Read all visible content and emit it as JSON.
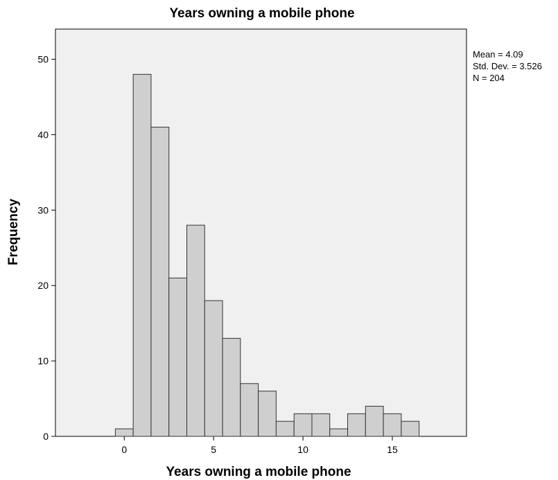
{
  "chart_data": {
    "type": "bar",
    "title": "Years owning a mobile phone",
    "xlabel": "Years owning a mobile phone",
    "ylabel": "Frequency",
    "bin_width": 1,
    "bins": [
      {
        "center": 0,
        "count": 1
      },
      {
        "center": 1,
        "count": 48
      },
      {
        "center": 2,
        "count": 41
      },
      {
        "center": 3,
        "count": 21
      },
      {
        "center": 4,
        "count": 28
      },
      {
        "center": 5,
        "count": 18
      },
      {
        "center": 6,
        "count": 13
      },
      {
        "center": 7,
        "count": 7
      },
      {
        "center": 8,
        "count": 6
      },
      {
        "center": 9,
        "count": 2
      },
      {
        "center": 10,
        "count": 3
      },
      {
        "center": 11,
        "count": 3
      },
      {
        "center": 12,
        "count": 1
      },
      {
        "center": 13,
        "count": 3
      },
      {
        "center": 14,
        "count": 4
      },
      {
        "center": 15,
        "count": 3
      },
      {
        "center": 16,
        "count": 2
      }
    ],
    "xlim": [
      -3.85,
      19.15
    ],
    "ylim": [
      0,
      54
    ],
    "xticks": [
      0,
      5,
      10,
      15
    ],
    "yticks": [
      0,
      10,
      20,
      30,
      40,
      50
    ],
    "grid": false,
    "legend": "none",
    "stats": [
      "Mean = 4.09",
      "Std. Dev. = 3.526",
      "N = 204"
    ],
    "colors": {
      "bar_fill": "#cfcfcf",
      "bar_stroke": "#333333",
      "plot_bg": "#f0f0f0",
      "axis": "#000000"
    }
  }
}
